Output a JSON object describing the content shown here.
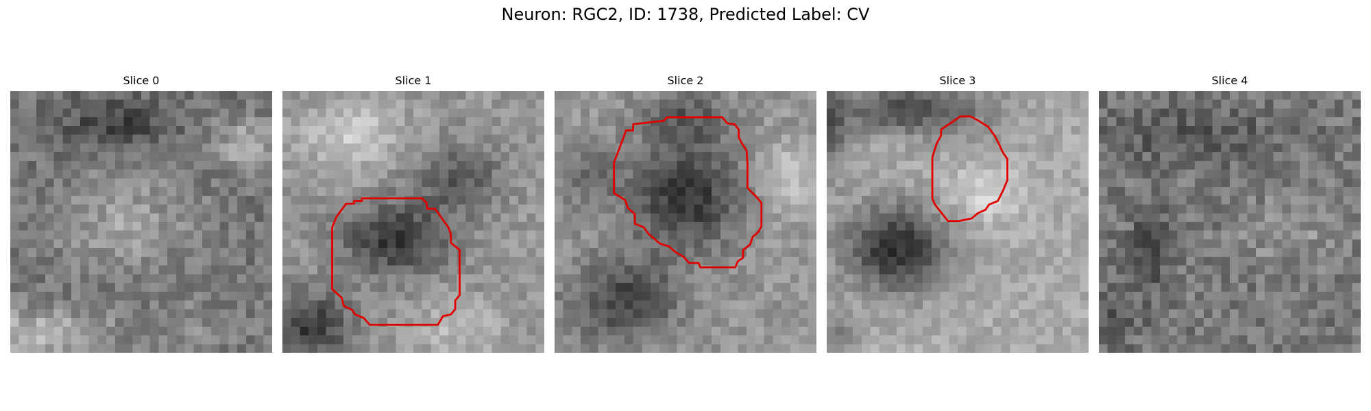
{
  "figure": {
    "title": "Neuron: RGC2, ID: 1738, Predicted Label: CV"
  },
  "panels": [
    {
      "title": "Slice 0",
      "has_outline": false
    },
    {
      "title": "Slice 1",
      "has_outline": true
    },
    {
      "title": "Slice 2",
      "has_outline": true
    },
    {
      "title": "Slice 3",
      "has_outline": true
    },
    {
      "title": "Slice 4",
      "has_outline": false
    }
  ],
  "colors": {
    "outline": "#e00000",
    "background": "#ffffff",
    "colormap": "grayscale"
  }
}
